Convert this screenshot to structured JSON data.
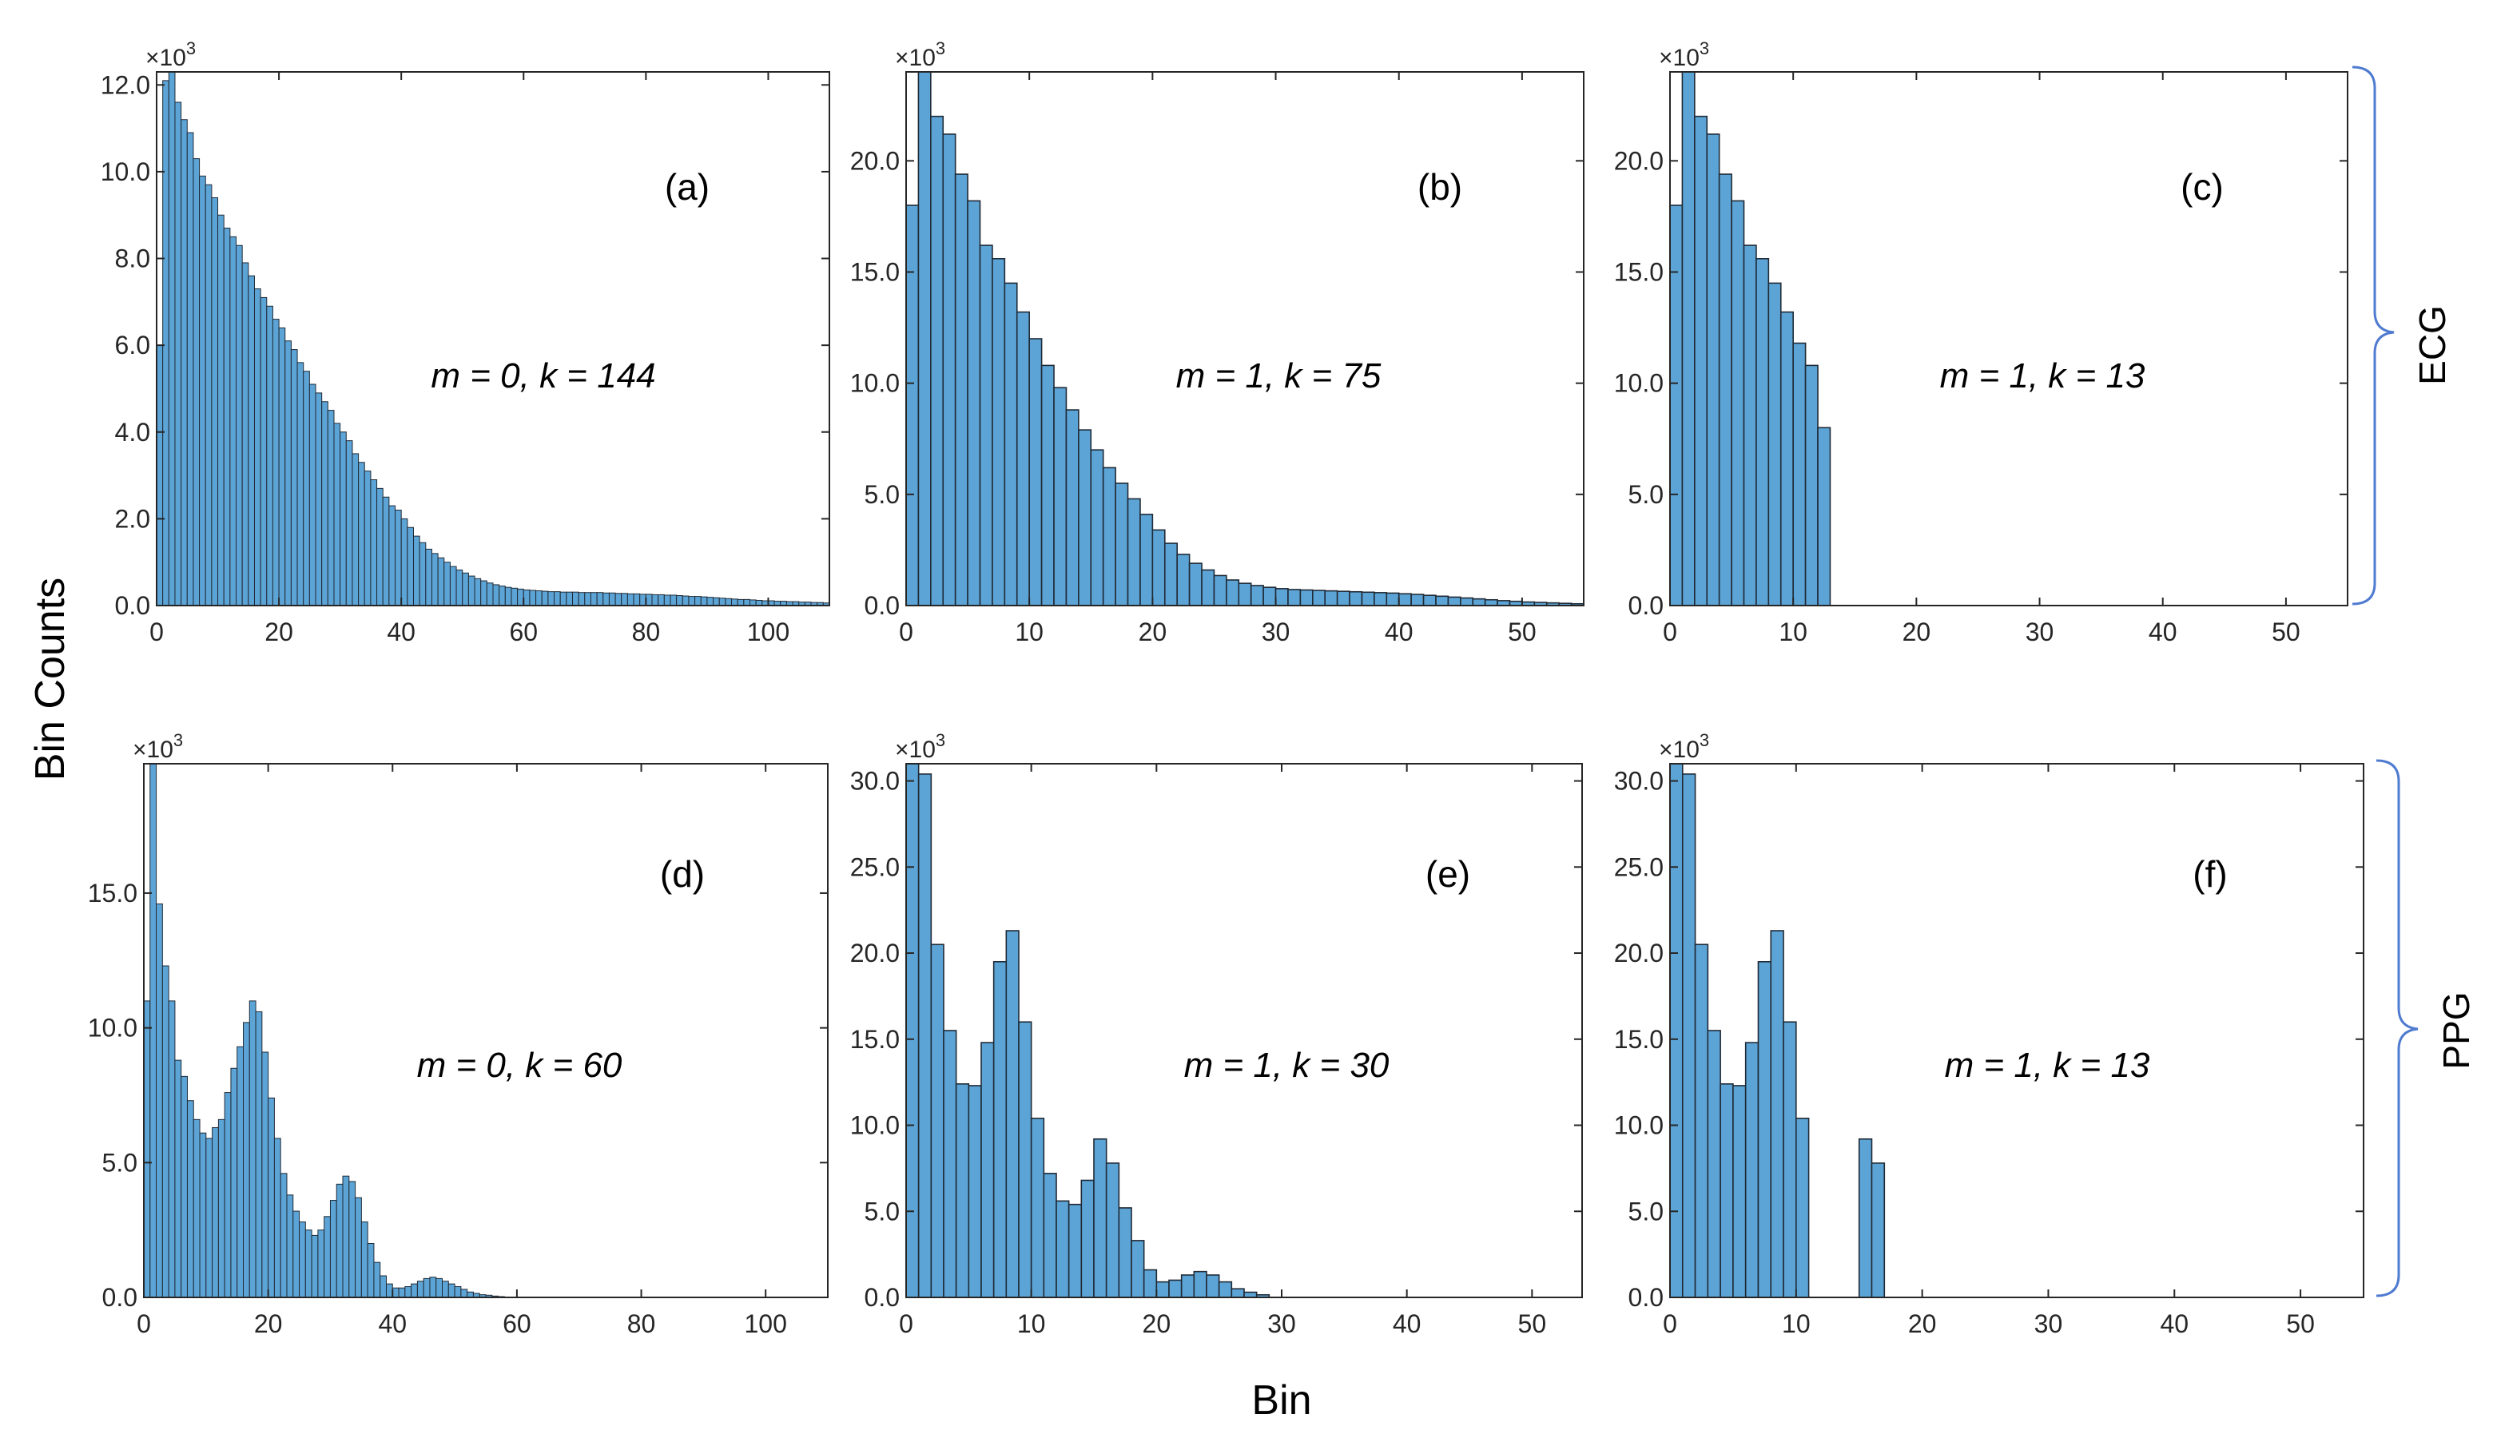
{
  "figure": {
    "ylabel": "Bin Counts",
    "xlabel": "Bin",
    "side_labels": [
      "ECG",
      "PPG"
    ],
    "bar_color": "#5da4d6",
    "edge_color": "#1f2a36",
    "brace_color": "#4f7bd0"
  },
  "chart_data": [
    {
      "id": "a",
      "type": "bar",
      "label": "(a)",
      "annotation": "m = 0, k = 144",
      "xlim": [
        0,
        110
      ],
      "ylim": [
        0,
        12.3
      ],
      "xticks": [
        0,
        20,
        40,
        60,
        80,
        100
      ],
      "xtick_labels": [
        "0",
        "20",
        "40",
        "60",
        "80",
        "100"
      ],
      "yticks": [
        0,
        2,
        4,
        6,
        8,
        10,
        12
      ],
      "ytick_labels": [
        "0.0",
        "2.0",
        "4.0",
        "6.0",
        "8.0",
        "10.0",
        "12.0"
      ],
      "multiplier": "×10",
      "multiplier_exp": "3",
      "bin_width": 1,
      "values": [
        6.0,
        12.1,
        12.3,
        11.6,
        11.2,
        10.9,
        10.3,
        9.9,
        9.7,
        9.4,
        9.0,
        8.7,
        8.5,
        8.3,
        7.9,
        7.6,
        7.3,
        7.1,
        6.9,
        6.6,
        6.4,
        6.1,
        5.9,
        5.6,
        5.4,
        5.1,
        4.9,
        4.7,
        4.5,
        4.2,
        4.0,
        3.8,
        3.5,
        3.3,
        3.1,
        2.9,
        2.7,
        2.5,
        2.3,
        2.2,
        2.0,
        1.8,
        1.6,
        1.45,
        1.3,
        1.2,
        1.1,
        1.0,
        0.9,
        0.82,
        0.75,
        0.68,
        0.62,
        0.57,
        0.52,
        0.48,
        0.45,
        0.42,
        0.4,
        0.38,
        0.36,
        0.35,
        0.34,
        0.33,
        0.32,
        0.32,
        0.31,
        0.31,
        0.31,
        0.3,
        0.3,
        0.3,
        0.3,
        0.29,
        0.29,
        0.28,
        0.28,
        0.27,
        0.27,
        0.26,
        0.26,
        0.25,
        0.25,
        0.24,
        0.24,
        0.23,
        0.22,
        0.21,
        0.21,
        0.2,
        0.19,
        0.18,
        0.17,
        0.16,
        0.15,
        0.14,
        0.14,
        0.13,
        0.12,
        0.11,
        0.11,
        0.1,
        0.1,
        0.09,
        0.09,
        0.08,
        0.08,
        0.07,
        0.07,
        0.06
      ]
    },
    {
      "id": "b",
      "type": "bar",
      "label": "(b)",
      "annotation": "m = 1, k = 75",
      "xlim": [
        0,
        55
      ],
      "ylim": [
        0,
        24
      ],
      "xticks": [
        0,
        10,
        20,
        30,
        40,
        50
      ],
      "xtick_labels": [
        "0",
        "10",
        "20",
        "30",
        "40",
        "50"
      ],
      "yticks": [
        0,
        5,
        10,
        15,
        20
      ],
      "ytick_labels": [
        "0.0",
        "5.0",
        "10.0",
        "15.0",
        "20.0"
      ],
      "multiplier": "×10",
      "multiplier_exp": "3",
      "bin_width": 1,
      "values": [
        18.0,
        24.0,
        22.0,
        21.2,
        19.4,
        18.2,
        16.2,
        15.6,
        14.5,
        13.2,
        12.0,
        10.8,
        9.8,
        8.8,
        7.9,
        7.0,
        6.2,
        5.5,
        4.8,
        4.1,
        3.4,
        2.8,
        2.3,
        1.9,
        1.6,
        1.35,
        1.15,
        1.0,
        0.9,
        0.82,
        0.76,
        0.72,
        0.7,
        0.68,
        0.66,
        0.64,
        0.62,
        0.6,
        0.58,
        0.56,
        0.53,
        0.5,
        0.46,
        0.42,
        0.38,
        0.34,
        0.3,
        0.26,
        0.22,
        0.19,
        0.16,
        0.14,
        0.12,
        0.1,
        0.08
      ]
    },
    {
      "id": "c",
      "type": "bar",
      "label": "(c)",
      "annotation": "m = 1, k = 13",
      "xlim": [
        0,
        55
      ],
      "ylim": [
        0,
        24
      ],
      "xticks": [
        0,
        10,
        20,
        30,
        40,
        50
      ],
      "xtick_labels": [
        "0",
        "10",
        "20",
        "30",
        "40",
        "50"
      ],
      "yticks": [
        0,
        5,
        10,
        15,
        20
      ],
      "ytick_labels": [
        "0.0",
        "5.0",
        "10.0",
        "15.0",
        "20.0"
      ],
      "multiplier": "×10",
      "multiplier_exp": "3",
      "bin_width": 1,
      "values": [
        18.0,
        24.0,
        22.0,
        21.2,
        19.4,
        18.2,
        16.2,
        15.6,
        14.5,
        13.2,
        11.8,
        10.8,
        8.0
      ]
    },
    {
      "id": "d",
      "type": "bar",
      "label": "(d)",
      "annotation": "m = 0, k = 60",
      "xlim": [
        0,
        110
      ],
      "ylim": [
        0,
        19.8
      ],
      "xticks": [
        0,
        20,
        40,
        60,
        80,
        100
      ],
      "xtick_labels": [
        "0",
        "20",
        "40",
        "60",
        "80",
        "100"
      ],
      "yticks": [
        0,
        5,
        10,
        15
      ],
      "ytick_labels": [
        "0.0",
        "5.0",
        "10.0",
        "15.0"
      ],
      "multiplier": "×10",
      "multiplier_exp": "3",
      "bin_width": 1,
      "values": [
        11.0,
        19.8,
        14.6,
        12.3,
        11.0,
        8.8,
        8.2,
        7.3,
        6.6,
        6.1,
        5.9,
        6.3,
        6.6,
        7.6,
        8.5,
        9.3,
        10.2,
        11.0,
        10.6,
        9.1,
        7.4,
        5.9,
        4.6,
        3.8,
        3.2,
        2.8,
        2.5,
        2.3,
        2.5,
        3.0,
        3.6,
        4.2,
        4.5,
        4.3,
        3.7,
        2.8,
        2.0,
        1.3,
        0.8,
        0.5,
        0.35,
        0.35,
        0.4,
        0.5,
        0.6,
        0.7,
        0.75,
        0.7,
        0.6,
        0.5,
        0.4,
        0.3,
        0.2,
        0.15,
        0.1,
        0.08,
        0.05,
        0.03
      ]
    },
    {
      "id": "e",
      "type": "bar",
      "label": "(e)",
      "annotation": "m = 1, k = 30",
      "xlim": [
        0,
        54
      ],
      "ylim": [
        0,
        31
      ],
      "xticks": [
        0,
        10,
        20,
        30,
        40,
        50
      ],
      "xtick_labels": [
        "0",
        "10",
        "20",
        "30",
        "40",
        "50"
      ],
      "yticks": [
        0,
        5,
        10,
        15,
        20,
        25,
        30
      ],
      "ytick_labels": [
        "0.0",
        "5.0",
        "10.0",
        "15.0",
        "20.0",
        "25.0",
        "30.0"
      ],
      "multiplier": "×10",
      "multiplier_exp": "3",
      "bin_width": 1,
      "values": [
        31.0,
        30.4,
        20.5,
        15.5,
        12.4,
        12.3,
        14.8,
        19.5,
        21.3,
        16.0,
        10.4,
        7.2,
        5.6,
        5.4,
        6.8,
        9.2,
        7.8,
        5.2,
        3.3,
        1.6,
        0.9,
        1.0,
        1.3,
        1.5,
        1.3,
        0.9,
        0.5,
        0.3,
        0.15
      ]
    },
    {
      "id": "f",
      "type": "bar",
      "label": "(f)",
      "annotation": "m = 1, k = 13",
      "xlim": [
        0,
        55
      ],
      "ylim": [
        0,
        31
      ],
      "xticks": [
        0,
        10,
        20,
        30,
        40,
        50
      ],
      "xtick_labels": [
        "0",
        "10",
        "20",
        "30",
        "40",
        "50"
      ],
      "yticks": [
        0,
        5,
        10,
        15,
        20,
        25,
        30
      ],
      "ytick_labels": [
        "0.0",
        "5.0",
        "10.0",
        "15.0",
        "20.0",
        "25.0",
        "30.0"
      ],
      "multiplier": "×10",
      "multiplier_exp": "3",
      "bin_width": 1,
      "values": [
        31.0,
        30.4,
        20.5,
        15.5,
        12.4,
        12.3,
        14.8,
        19.5,
        21.3,
        16.0,
        10.4,
        0,
        0,
        0,
        0,
        9.2,
        7.8
      ]
    }
  ]
}
